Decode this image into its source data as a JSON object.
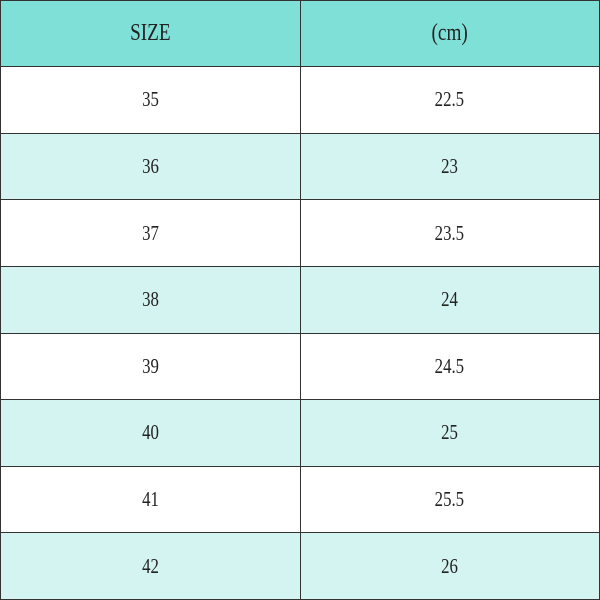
{
  "colors": {
    "header_bg": "#7fe0d8",
    "alt_row_bg": "#d3f4f1",
    "row_bg": "#ffffff"
  },
  "table": {
    "headers": [
      "SIZE",
      "(cm)"
    ],
    "rows": [
      [
        "35",
        "22.5"
      ],
      [
        "36",
        "23"
      ],
      [
        "37",
        "23.5"
      ],
      [
        "38",
        "24"
      ],
      [
        "39",
        "24.5"
      ],
      [
        "40",
        "25"
      ],
      [
        "41",
        "25.5"
      ],
      [
        "42",
        "26"
      ]
    ]
  }
}
